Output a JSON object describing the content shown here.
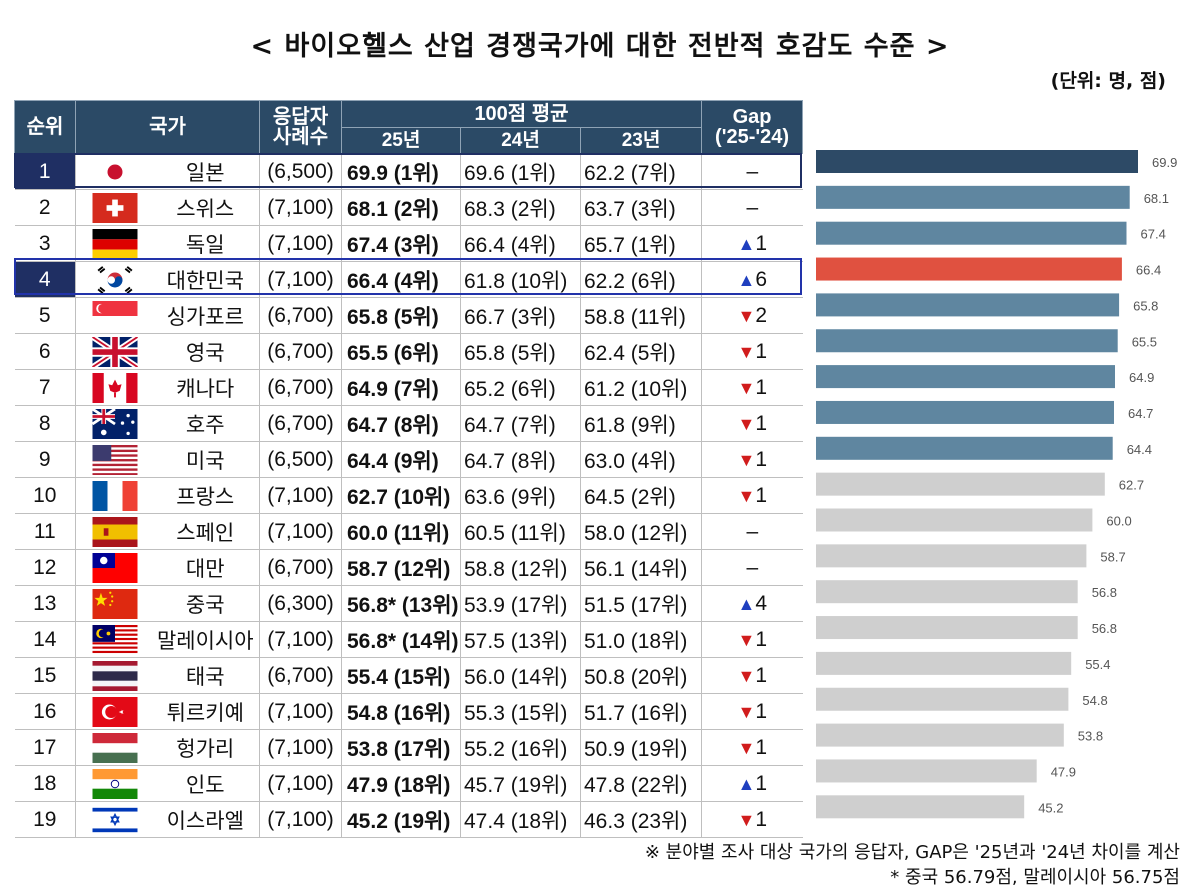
{
  "title": "< 바이오헬스 산업 경쟁국가에 대한 전반적 호감도 수준 >",
  "unit": "(단위: 명, 점)",
  "headers": {
    "rank": "순위",
    "country": "국가",
    "resp_line1": "응답자",
    "resp_line2": "사례수",
    "avg": "100점 평균",
    "y25": "25년",
    "y24": "24년",
    "y23": "23년",
    "gap_line1": "Gap",
    "gap_line2": "('25-'24)"
  },
  "colors": {
    "header": "#2b4a66",
    "bar_top": "#2d4a66",
    "bar_mid": "#5f86a0",
    "bar_korea": "#e05140",
    "bar_rest": "#cfcfcf",
    "highlight_japan": "#1f2f63",
    "highlight_korea": "#2233aa",
    "up": "#1f3fbf",
    "down": "#d11c1c"
  },
  "rows": [
    {
      "rank": "1",
      "flag": "japan-flag-icon",
      "country": "일본",
      "resp": "(6,500)",
      "y25": "69.9 (1위)",
      "y24": "69.6 (1위)",
      "y23": "62.2 (7위)",
      "gap_dir": "none",
      "gap_sym": "",
      "gap": "–"
    },
    {
      "rank": "2",
      "flag": "switzerland-flag-icon",
      "country": "스위스",
      "resp": "(7,100)",
      "y25": "68.1 (2위)",
      "y24": "68.3 (2위)",
      "y23": "63.7 (3위)",
      "gap_dir": "none",
      "gap_sym": "",
      "gap": "–"
    },
    {
      "rank": "3",
      "flag": "germany-flag-icon",
      "country": "독일",
      "resp": "(7,100)",
      "y25": "67.4 (3위)",
      "y24": "66.4 (4위)",
      "y23": "65.7 (1위)",
      "gap_dir": "up",
      "gap_sym": "▲",
      "gap": "1"
    },
    {
      "rank": "4",
      "flag": "korea-flag-icon",
      "country": "대한민국",
      "resp": "(7,100)",
      "y25": "66.4 (4위)",
      "y24": "61.8 (10위)",
      "y23": "62.2 (6위)",
      "gap_dir": "up",
      "gap_sym": "▲",
      "gap": "6"
    },
    {
      "rank": "5",
      "flag": "singapore-flag-icon",
      "country": "싱가포르",
      "resp": "(6,700)",
      "y25": "65.8 (5위)",
      "y24": "66.7 (3위)",
      "y23": "58.8 (11위)",
      "gap_dir": "down",
      "gap_sym": "▼",
      "gap": "2"
    },
    {
      "rank": "6",
      "flag": "uk-flag-icon",
      "country": "영국",
      "resp": "(6,700)",
      "y25": "65.5 (6위)",
      "y24": "65.8 (5위)",
      "y23": "62.4 (5위)",
      "gap_dir": "down",
      "gap_sym": "▼",
      "gap": "1"
    },
    {
      "rank": "7",
      "flag": "canada-flag-icon",
      "country": "캐나다",
      "resp": "(6,700)",
      "y25": "64.9 (7위)",
      "y24": "65.2 (6위)",
      "y23": "61.2 (10위)",
      "gap_dir": "down",
      "gap_sym": "▼",
      "gap": "1"
    },
    {
      "rank": "8",
      "flag": "australia-flag-icon",
      "country": "호주",
      "resp": "(6,700)",
      "y25": "64.7 (8위)",
      "y24": "64.7 (7위)",
      "y23": "61.8 (9위)",
      "gap_dir": "down",
      "gap_sym": "▼",
      "gap": "1"
    },
    {
      "rank": "9",
      "flag": "usa-flag-icon",
      "country": "미국",
      "resp": "(6,500)",
      "y25": "64.4 (9위)",
      "y24": "64.7 (8위)",
      "y23": "63.0 (4위)",
      "gap_dir": "down",
      "gap_sym": "▼",
      "gap": "1"
    },
    {
      "rank": "10",
      "flag": "france-flag-icon",
      "country": "프랑스",
      "resp": "(7,100)",
      "y25": "62.7 (10위)",
      "y24": "63.6 (9위)",
      "y23": "64.5 (2위)",
      "gap_dir": "down",
      "gap_sym": "▼",
      "gap": "1"
    },
    {
      "rank": "11",
      "flag": "spain-flag-icon",
      "country": "스페인",
      "resp": "(7,100)",
      "y25": "60.0 (11위)",
      "y24": "60.5 (11위)",
      "y23": "58.0 (12위)",
      "gap_dir": "none",
      "gap_sym": "",
      "gap": "–"
    },
    {
      "rank": "12",
      "flag": "taiwan-flag-icon",
      "country": "대만",
      "resp": "(6,700)",
      "y25": "58.7 (12위)",
      "y24": "58.8 (12위)",
      "y23": "56.1 (14위)",
      "gap_dir": "none",
      "gap_sym": "",
      "gap": "–"
    },
    {
      "rank": "13",
      "flag": "china-flag-icon",
      "country": "중국",
      "resp": "(6,300)",
      "y25": "56.8* (13위)",
      "y24": "53.9 (17위)",
      "y23": "51.5 (17위)",
      "gap_dir": "up",
      "gap_sym": "▲",
      "gap": "4"
    },
    {
      "rank": "14",
      "flag": "malaysia-flag-icon",
      "country": "말레이시아",
      "resp": "(7,100)",
      "y25": "56.8* (14위)",
      "y24": "57.5 (13위)",
      "y23": "51.0 (18위)",
      "gap_dir": "down",
      "gap_sym": "▼",
      "gap": "1"
    },
    {
      "rank": "15",
      "flag": "thailand-flag-icon",
      "country": "태국",
      "resp": "(6,700)",
      "y25": "55.4 (15위)",
      "y24": "56.0 (14위)",
      "y23": "50.8 (20위)",
      "gap_dir": "down",
      "gap_sym": "▼",
      "gap": "1"
    },
    {
      "rank": "16",
      "flag": "turkey-flag-icon",
      "country": "튀르키예",
      "resp": "(7,100)",
      "y25": "54.8 (16위)",
      "y24": "55.3 (15위)",
      "y23": "51.7 (16위)",
      "gap_dir": "down",
      "gap_sym": "▼",
      "gap": "1"
    },
    {
      "rank": "17",
      "flag": "hungary-flag-icon",
      "country": "헝가리",
      "resp": "(7,100)",
      "y25": "53.8 (17위)",
      "y24": "55.2 (16위)",
      "y23": "50.9 (19위)",
      "gap_dir": "down",
      "gap_sym": "▼",
      "gap": "1"
    },
    {
      "rank": "18",
      "flag": "india-flag-icon",
      "country": "인도",
      "resp": "(7,100)",
      "y25": "47.9 (18위)",
      "y24": "45.7 (19위)",
      "y23": "47.8 (22위)",
      "gap_dir": "up",
      "gap_sym": "▲",
      "gap": "1"
    },
    {
      "rank": "19",
      "flag": "israel-flag-icon",
      "country": "이스라엘",
      "resp": "(7,100)",
      "y25": "45.2 (19위)",
      "y24": "47.4 (18위)",
      "y23": "46.3 (23위)",
      "gap_dir": "down",
      "gap_sym": "▼",
      "gap": "1"
    }
  ],
  "chart_data": {
    "type": "bar",
    "orientation": "horizontal",
    "categories": [
      "일본",
      "스위스",
      "독일",
      "대한민국",
      "싱가포르",
      "영국",
      "캐나다",
      "호주",
      "미국",
      "프랑스",
      "스페인",
      "대만",
      "중국",
      "말레이시아",
      "태국",
      "튀르키예",
      "헝가리",
      "인도",
      "이스라엘"
    ],
    "values": [
      69.9,
      68.1,
      67.4,
      66.4,
      65.8,
      65.5,
      64.9,
      64.7,
      64.4,
      62.7,
      60.0,
      58.7,
      56.8,
      56.8,
      55.4,
      54.8,
      53.8,
      47.9,
      45.2
    ],
    "value_labels": [
      "69.9",
      "68.1",
      "67.4",
      "66.4",
      "65.8",
      "65.5",
      "64.9",
      "64.7",
      "64.4",
      "62.7",
      "60.0",
      "58.7",
      "56.8",
      "56.8",
      "55.4",
      "54.8",
      "53.8",
      "47.9",
      "45.2"
    ],
    "bar_colors": [
      "#2d4a66",
      "#5f86a0",
      "#5f86a0",
      "#e05140",
      "#5f86a0",
      "#5f86a0",
      "#5f86a0",
      "#5f86a0",
      "#5f86a0",
      "#cfcfcf",
      "#cfcfcf",
      "#cfcfcf",
      "#cfcfcf",
      "#cfcfcf",
      "#cfcfcf",
      "#cfcfcf",
      "#cfcfcf",
      "#cfcfcf",
      "#cfcfcf"
    ],
    "xlim": [
      0,
      70
    ]
  },
  "footnotes": {
    "line1": "※ 분야별 조사 대상 국가의 응답자, GAP은 '25년과 '24년 차이를 계산",
    "line2": "* 중국 56.79점, 말레이시아 56.75점"
  }
}
